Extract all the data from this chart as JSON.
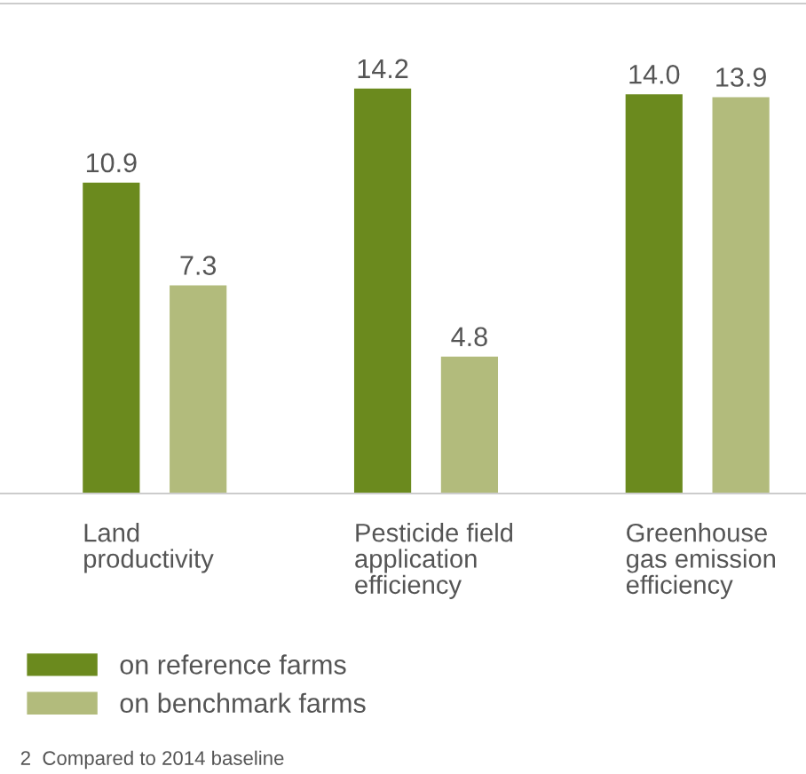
{
  "chart_data": {
    "type": "bar",
    "categories": [
      "Land\nproductivity",
      "Pesticide field\napplication\nefficiency",
      "Greenhouse\ngas emission\nefficiency"
    ],
    "series": [
      {
        "name": "on reference farms",
        "color": "#6b8a1e",
        "values": [
          10.9,
          14.2,
          14.0
        ],
        "value_labels": [
          "10.9",
          "14.2",
          "14.0"
        ]
      },
      {
        "name": "on benchmark farms",
        "color": "#b2bb7c",
        "values": [
          7.3,
          4.8,
          13.9
        ],
        "value_labels": [
          "7.3",
          "4.8",
          "13.9"
        ]
      }
    ],
    "legend": "bottom",
    "annotations": [
      "2  Compared to 2014 baseline"
    ]
  }
}
